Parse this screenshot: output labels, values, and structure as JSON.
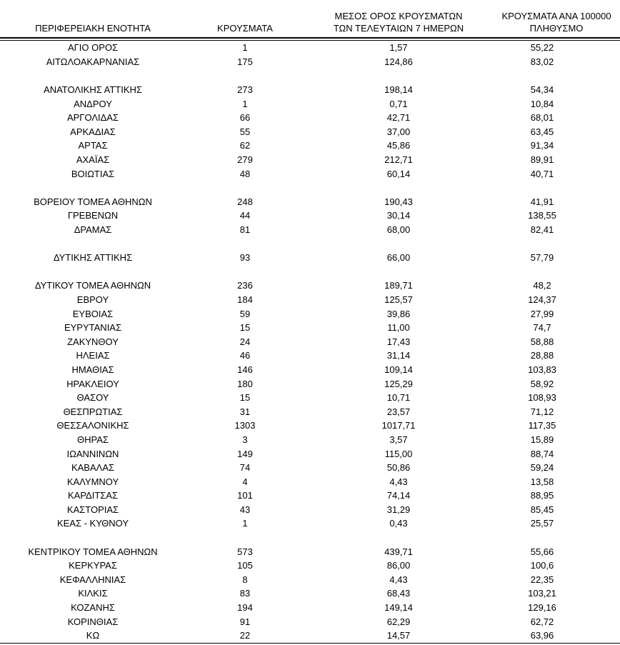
{
  "colors": {
    "background": "#ffffff",
    "text": "#000000",
    "rule": "#000000"
  },
  "table": {
    "column_headers": [
      {
        "id": "region",
        "lines": [
          "ΠΕΡΙΦΕΡΕΙΑΚΗ ΕΝΟΤΗΤΑ"
        ]
      },
      {
        "id": "cases",
        "lines": [
          "ΚΡΟΥΣΜΑΤΑ"
        ]
      },
      {
        "id": "avg7",
        "lines": [
          "ΜΕΣΟΣ ΟΡΟΣ ΚΡΟΥΣΜΑΤΩΝ",
          "ΤΩΝ ΤΕΛΕΥΤΑΙΩΝ 7 ΗΜΕΡΩΝ"
        ]
      },
      {
        "id": "per100k",
        "lines": [
          "ΚΡΟΥΣΜΑΤΑ ΑΝΑ 100000",
          "ΠΛΗΘΥΣΜΟ"
        ]
      }
    ],
    "spacer_after_rows": [
      1,
      8,
      11,
      12,
      30
    ]
  },
  "chart_data": {
    "type": "table",
    "columns": [
      "ΠΕΡΙΦΕΡΕΙΑΚΗ ΕΝΟΤΗΤΑ",
      "ΚΡΟΥΣΜΑΤΑ",
      "ΜΕΣΟΣ ΟΡΟΣ ΚΡΟΥΣΜΑΤΩΝ ΤΩΝ ΤΕΛΕΥΤΑΙΩΝ 7 ΗΜΕΡΩΝ",
      "ΚΡΟΥΣΜΑΤΑ ΑΝΑ 100000 ΠΛΗΘΥΣΜΟ"
    ],
    "rows": [
      [
        "ΑΓΙΟ ΟΡΟΣ",
        "1",
        "1,57",
        "55,22"
      ],
      [
        "ΑΙΤΩΛΟΑΚΑΡΝΑΝΙΑΣ",
        "175",
        "124,86",
        "83,02"
      ],
      [
        "ΑΝΑΤΟΛΙΚΗΣ ΑΤΤΙΚΗΣ",
        "273",
        "198,14",
        "54,34"
      ],
      [
        "ΑΝΔΡΟΥ",
        "1",
        "0,71",
        "10,84"
      ],
      [
        "ΑΡΓΟΛΙΔΑΣ",
        "66",
        "42,71",
        "68,01"
      ],
      [
        "ΑΡΚΑΔΙΑΣ",
        "55",
        "37,00",
        "63,45"
      ],
      [
        "ΑΡΤΑΣ",
        "62",
        "45,86",
        "91,34"
      ],
      [
        "ΑΧΑΪΑΣ",
        "279",
        "212,71",
        "89,91"
      ],
      [
        "ΒΟΙΩΤΙΑΣ",
        "48",
        "60,14",
        "40,71"
      ],
      [
        "ΒΟΡΕΙΟΥ ΤΟΜΕΑ ΑΘΗΝΩΝ",
        "248",
        "190,43",
        "41,91"
      ],
      [
        "ΓΡΕΒΕΝΩΝ",
        "44",
        "30,14",
        "138,55"
      ],
      [
        "ΔΡΑΜΑΣ",
        "81",
        "68,00",
        "82,41"
      ],
      [
        "ΔΥΤΙΚΗΣ ΑΤΤΙΚΗΣ",
        "93",
        "66,00",
        "57,79"
      ],
      [
        "ΔΥΤΙΚΟΥ ΤΟΜΕΑ ΑΘΗΝΩΝ",
        "236",
        "189,71",
        "48,2"
      ],
      [
        "ΕΒΡΟΥ",
        "184",
        "125,57",
        "124,37"
      ],
      [
        "ΕΥΒΟΙΑΣ",
        "59",
        "39,86",
        "27,99"
      ],
      [
        "ΕΥΡΥΤΑΝΙΑΣ",
        "15",
        "11,00",
        "74,7"
      ],
      [
        "ΖΑΚΥΝΘΟΥ",
        "24",
        "17,43",
        "58,88"
      ],
      [
        "ΗΛΕΙΑΣ",
        "46",
        "31,14",
        "28,88"
      ],
      [
        "ΗΜΑΘΙΑΣ",
        "146",
        "109,14",
        "103,83"
      ],
      [
        "ΗΡΑΚΛΕΙΟΥ",
        "180",
        "125,29",
        "58,92"
      ],
      [
        "ΘΑΣΟΥ",
        "15",
        "10,71",
        "108,93"
      ],
      [
        "ΘΕΣΠΡΩΤΙΑΣ",
        "31",
        "23,57",
        "71,12"
      ],
      [
        "ΘΕΣΣΑΛΟΝΙΚΗΣ",
        "1303",
        "1017,71",
        "117,35"
      ],
      [
        "ΘΗΡΑΣ",
        "3",
        "3,57",
        "15,89"
      ],
      [
        "ΙΩΑΝΝΙΝΩΝ",
        "149",
        "115,00",
        "88,74"
      ],
      [
        "ΚΑΒΑΛΑΣ",
        "74",
        "50,86",
        "59,24"
      ],
      [
        "ΚΑΛΥΜΝΟΥ",
        "4",
        "4,43",
        "13,58"
      ],
      [
        "ΚΑΡΔΙΤΣΑΣ",
        "101",
        "74,14",
        "88,95"
      ],
      [
        "ΚΑΣΤΟΡΙΑΣ",
        "43",
        "31,29",
        "85,45"
      ],
      [
        "ΚΕΑΣ - ΚΥΘΝΟΥ",
        "1",
        "0,43",
        "25,57"
      ],
      [
        "ΚΕΝΤΡΙΚΟΥ ΤΟΜΕΑ ΑΘΗΝΩΝ",
        "573",
        "439,71",
        "55,66"
      ],
      [
        "ΚΕΡΚΥΡΑΣ",
        "105",
        "86,00",
        "100,6"
      ],
      [
        "ΚΕΦΑΛΛΗΝΙΑΣ",
        "8",
        "4,43",
        "22,35"
      ],
      [
        "ΚΙΛΚΙΣ",
        "83",
        "68,43",
        "103,21"
      ],
      [
        "ΚΟΖΑΝΗΣ",
        "194",
        "149,14",
        "129,16"
      ],
      [
        "ΚΟΡΙΝΘΙΑΣ",
        "91",
        "62,29",
        "62,72"
      ],
      [
        "ΚΩ",
        "22",
        "14,57",
        "63,96"
      ]
    ]
  }
}
